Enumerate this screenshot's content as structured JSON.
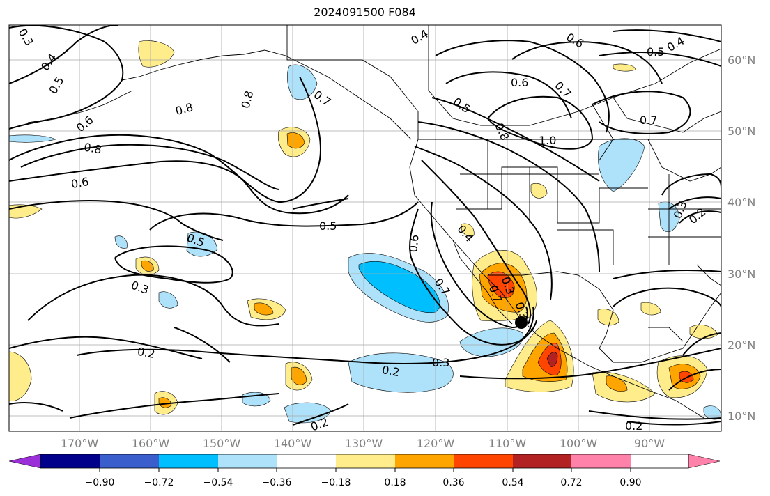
{
  "title": "2024091500 F084",
  "lon_labels": [
    "170°W",
    "160°W",
    "150°W",
    "140°W",
    "130°W",
    "120°W",
    "110°W",
    "100°W",
    "90°W"
  ],
  "lat_labels": [
    "60°N",
    "50°N",
    "40°N",
    "30°N",
    "20°N",
    "10°N"
  ],
  "colorbar": {
    "tick_labels": [
      "−0.90",
      "−0.72",
      "−0.54",
      "−0.36",
      "−0.18",
      "0.18",
      "0.36",
      "0.54",
      "0.72",
      "0.90"
    ],
    "colors": [
      "#9b30d9",
      "#00008b",
      "#3a5fcd",
      "#00bfff",
      "#aee1fa",
      "#ffffff",
      "#ffec8b",
      "#ffa500",
      "#ff4500",
      "#b22222",
      "#ff82ab"
    ]
  },
  "contour_labels": [
    "0.3",
    "0.4",
    "0.5",
    "0.6",
    "0.8",
    "0.8",
    "0.6",
    "0.8",
    "0.7",
    "0.5",
    "0.5",
    "0.3",
    "0.2",
    "0.2",
    "0.3",
    "0.2",
    "0.2",
    "0.6",
    "0.7",
    "0.7",
    "0.4",
    "0.3",
    "0.3",
    "0.4",
    "0.5",
    "0.6",
    "0.7",
    "0.8",
    "1.0",
    "0.6",
    "0.7",
    "0.5",
    "0.4",
    "0.3",
    "0.2"
  ],
  "storm_marker": "tropical-cyclone-center"
}
